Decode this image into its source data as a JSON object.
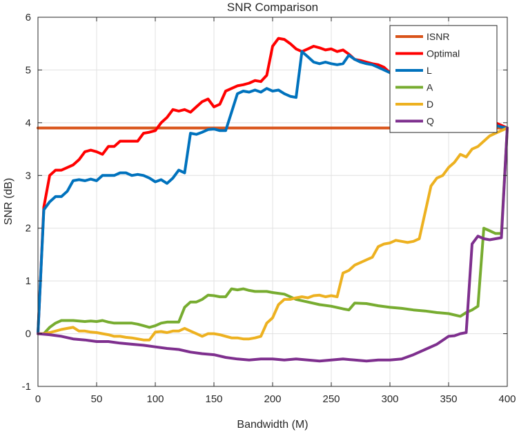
{
  "chart_data": {
    "type": "line",
    "title": "SNR Comparison",
    "xlabel": "Bandwidth (M)",
    "ylabel": "SNR (dB)",
    "xlim": [
      0,
      400
    ],
    "ylim": [
      -1,
      6
    ],
    "xticks": [
      0,
      50,
      100,
      150,
      200,
      250,
      300,
      350,
      400
    ],
    "yticks": [
      -1,
      0,
      1,
      2,
      3,
      4,
      5,
      6
    ],
    "grid": true,
    "legend_position": "top-right",
    "series": [
      {
        "name": "ISNR",
        "color": "#d95319",
        "x": [
          0,
          400
        ],
        "y": [
          3.9,
          3.9
        ]
      },
      {
        "name": "Optimal",
        "color": "#ff0000",
        "x": [
          0,
          5,
          10,
          15,
          20,
          25,
          30,
          35,
          40,
          45,
          50,
          55,
          60,
          65,
          70,
          75,
          80,
          85,
          90,
          95,
          100,
          105,
          110,
          115,
          120,
          125,
          130,
          135,
          140,
          145,
          150,
          155,
          160,
          165,
          170,
          175,
          180,
          185,
          190,
          195,
          200,
          205,
          210,
          215,
          220,
          225,
          230,
          235,
          240,
          245,
          250,
          255,
          260,
          265,
          270,
          275,
          280,
          285,
          290,
          295,
          300,
          310,
          320,
          330,
          340,
          350,
          360,
          370,
          380,
          390,
          395,
          400
        ],
        "y": [
          0,
          2.4,
          3.0,
          3.1,
          3.1,
          3.15,
          3.2,
          3.3,
          3.45,
          3.48,
          3.45,
          3.4,
          3.55,
          3.55,
          3.65,
          3.65,
          3.65,
          3.65,
          3.8,
          3.82,
          3.85,
          4.0,
          4.1,
          4.25,
          4.22,
          4.25,
          4.2,
          4.3,
          4.4,
          4.45,
          4.3,
          4.35,
          4.6,
          4.65,
          4.7,
          4.72,
          4.75,
          4.8,
          4.78,
          4.9,
          5.45,
          5.6,
          5.58,
          5.5,
          5.4,
          5.35,
          5.4,
          5.45,
          5.42,
          5.38,
          5.4,
          5.35,
          5.38,
          5.3,
          5.2,
          5.18,
          5.15,
          5.12,
          5.1,
          5.05,
          4.95,
          4.8,
          4.6,
          4.45,
          4.3,
          4.2,
          4.15,
          4.1,
          4.05,
          4.0,
          3.95,
          3.9
        ]
      },
      {
        "name": "L",
        "color": "#0072bd",
        "x": [
          0,
          5,
          10,
          15,
          20,
          25,
          30,
          35,
          40,
          45,
          50,
          55,
          60,
          65,
          70,
          75,
          80,
          85,
          90,
          95,
          100,
          105,
          110,
          115,
          120,
          125,
          130,
          135,
          140,
          145,
          150,
          155,
          160,
          165,
          170,
          175,
          180,
          185,
          190,
          195,
          200,
          205,
          210,
          215,
          220,
          225,
          230,
          235,
          240,
          245,
          250,
          255,
          260,
          265,
          270,
          275,
          280,
          285,
          290,
          295,
          300,
          310,
          320,
          330,
          340,
          350,
          360,
          370,
          380,
          390,
          395,
          400
        ],
        "y": [
          0,
          2.35,
          2.5,
          2.6,
          2.6,
          2.7,
          2.9,
          2.92,
          2.9,
          2.93,
          2.9,
          3.0,
          3.0,
          3.0,
          3.05,
          3.05,
          3.0,
          3.02,
          3.0,
          2.95,
          2.88,
          2.92,
          2.85,
          2.95,
          3.1,
          3.05,
          3.8,
          3.78,
          3.82,
          3.87,
          3.88,
          3.85,
          3.85,
          4.2,
          4.55,
          4.6,
          4.58,
          4.62,
          4.58,
          4.65,
          4.6,
          4.62,
          4.55,
          4.5,
          4.48,
          5.35,
          5.25,
          5.15,
          5.12,
          5.15,
          5.12,
          5.1,
          5.12,
          5.28,
          5.2,
          5.15,
          5.12,
          5.1,
          5.05,
          5.0,
          4.95,
          4.75,
          4.55,
          4.4,
          4.25,
          4.15,
          4.1,
          4.05,
          4.0,
          3.95,
          3.92,
          3.9
        ]
      },
      {
        "name": "A",
        "color": "#77ac30",
        "x": [
          0,
          5,
          10,
          15,
          20,
          25,
          30,
          35,
          40,
          45,
          50,
          55,
          60,
          65,
          70,
          75,
          80,
          85,
          90,
          95,
          100,
          105,
          110,
          115,
          120,
          125,
          130,
          135,
          140,
          145,
          150,
          155,
          160,
          165,
          170,
          175,
          180,
          185,
          190,
          195,
          200,
          210,
          220,
          230,
          240,
          250,
          260,
          265,
          270,
          280,
          290,
          300,
          310,
          320,
          330,
          340,
          350,
          360,
          365,
          370,
          375,
          380,
          385,
          390,
          395,
          400
        ],
        "y": [
          0,
          0.0,
          0.12,
          0.2,
          0.25,
          0.25,
          0.25,
          0.24,
          0.23,
          0.24,
          0.23,
          0.25,
          0.22,
          0.2,
          0.2,
          0.2,
          0.2,
          0.18,
          0.15,
          0.12,
          0.15,
          0.2,
          0.22,
          0.22,
          0.22,
          0.5,
          0.6,
          0.6,
          0.65,
          0.73,
          0.72,
          0.7,
          0.7,
          0.85,
          0.83,
          0.85,
          0.82,
          0.8,
          0.8,
          0.8,
          0.78,
          0.75,
          0.65,
          0.6,
          0.55,
          0.52,
          0.47,
          0.45,
          0.58,
          0.57,
          0.53,
          0.5,
          0.48,
          0.45,
          0.43,
          0.4,
          0.38,
          0.33,
          0.4,
          0.45,
          0.52,
          2.0,
          1.95,
          1.9,
          1.9,
          3.9
        ]
      },
      {
        "name": "D",
        "color": "#edb120",
        "x": [
          0,
          5,
          10,
          15,
          20,
          25,
          30,
          35,
          40,
          45,
          50,
          55,
          60,
          65,
          70,
          75,
          80,
          85,
          90,
          95,
          100,
          105,
          110,
          115,
          120,
          125,
          130,
          135,
          140,
          145,
          150,
          155,
          160,
          165,
          170,
          175,
          180,
          185,
          190,
          195,
          200,
          205,
          210,
          215,
          220,
          225,
          230,
          235,
          240,
          245,
          250,
          255,
          260,
          265,
          270,
          275,
          280,
          285,
          290,
          295,
          300,
          305,
          310,
          315,
          320,
          325,
          330,
          335,
          340,
          345,
          350,
          355,
          360,
          365,
          370,
          375,
          380,
          385,
          390,
          395,
          400
        ],
        "y": [
          0,
          0.0,
          0.02,
          0.05,
          0.08,
          0.1,
          0.12,
          0.05,
          0.05,
          0.03,
          0.02,
          0.0,
          -0.02,
          -0.05,
          -0.05,
          -0.07,
          -0.08,
          -0.1,
          -0.12,
          -0.12,
          0.03,
          0.04,
          0.02,
          0.05,
          0.05,
          0.1,
          0.05,
          0.0,
          -0.05,
          0.0,
          0.0,
          -0.02,
          -0.05,
          -0.08,
          -0.08,
          -0.1,
          -0.1,
          -0.08,
          -0.05,
          0.2,
          0.3,
          0.55,
          0.65,
          0.65,
          0.68,
          0.7,
          0.68,
          0.72,
          0.73,
          0.7,
          0.72,
          0.7,
          1.15,
          1.2,
          1.3,
          1.35,
          1.4,
          1.45,
          1.65,
          1.7,
          1.72,
          1.77,
          1.75,
          1.73,
          1.75,
          1.8,
          2.3,
          2.8,
          2.95,
          3.0,
          3.15,
          3.25,
          3.4,
          3.35,
          3.5,
          3.55,
          3.65,
          3.75,
          3.8,
          3.85,
          3.9
        ]
      },
      {
        "name": "Q",
        "color": "#7e2f8e",
        "x": [
          0,
          10,
          20,
          30,
          40,
          50,
          60,
          70,
          80,
          90,
          100,
          110,
          120,
          130,
          140,
          150,
          160,
          170,
          180,
          190,
          200,
          210,
          220,
          230,
          240,
          250,
          260,
          270,
          280,
          290,
          300,
          310,
          320,
          330,
          340,
          350,
          355,
          360,
          365,
          370,
          375,
          380,
          385,
          390,
          395,
          400
        ],
        "y": [
          0,
          -0.02,
          -0.05,
          -0.1,
          -0.12,
          -0.15,
          -0.15,
          -0.18,
          -0.2,
          -0.22,
          -0.25,
          -0.28,
          -0.3,
          -0.35,
          -0.38,
          -0.4,
          -0.45,
          -0.48,
          -0.5,
          -0.48,
          -0.48,
          -0.5,
          -0.48,
          -0.5,
          -0.52,
          -0.5,
          -0.48,
          -0.5,
          -0.52,
          -0.5,
          -0.5,
          -0.48,
          -0.4,
          -0.3,
          -0.2,
          -0.05,
          -0.04,
          0.0,
          0.02,
          1.7,
          1.85,
          1.8,
          1.78,
          1.8,
          1.82,
          3.9
        ]
      }
    ]
  }
}
